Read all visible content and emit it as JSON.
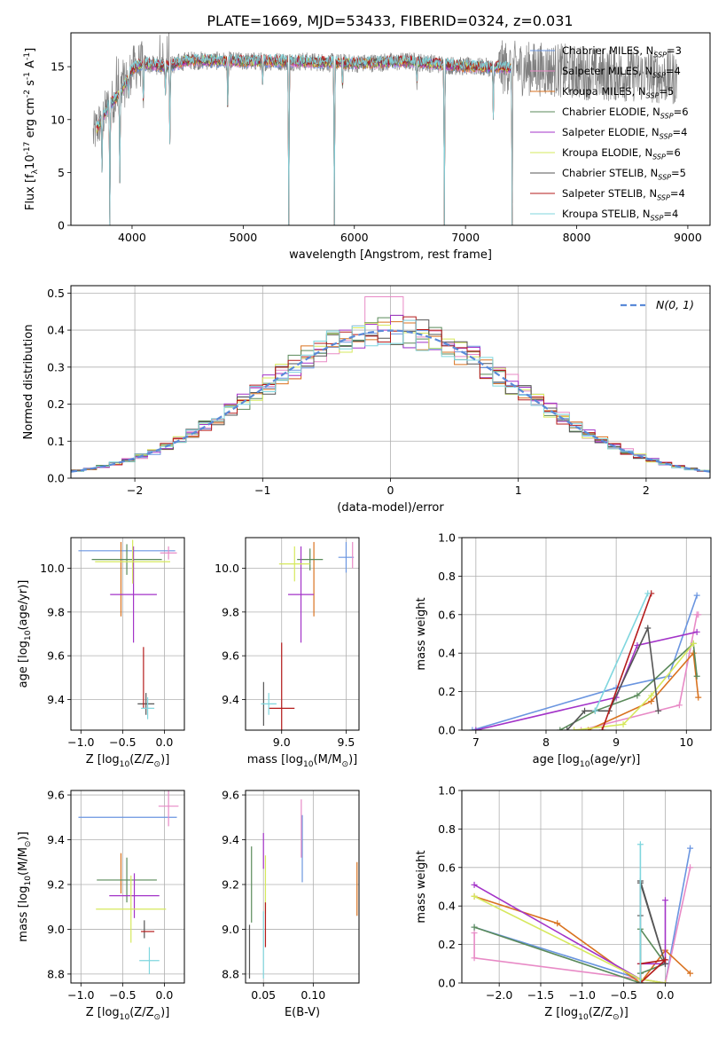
{
  "figure_title": "PLATE=1669, MJD=53433, FIBERID=0324, z=0.031",
  "series_colors": [
    "#6a95e0",
    "#e88ac6",
    "#d9721f",
    "#5a8a5a",
    "#a333c8",
    "#d6e85c",
    "#555555",
    "#b51b1b",
    "#7fd6de"
  ],
  "chart_data": [
    {
      "id": "spectrum",
      "type": "line",
      "title": "PLATE=1669, MJD=53433, FIBERID=0324, z=0.031",
      "xlabel": "wavelength [Angstrom, rest frame]",
      "ylabel": "Flux [f$_{\\lambda}$10$^{-17}$ erg cm$^{-2}$ s$^{-1}$ A$^{-1}$]",
      "xlim": [
        3450,
        9200
      ],
      "ylim": [
        0,
        18.2
      ],
      "xticks": [
        4000,
        5000,
        6000,
        7000,
        8000,
        9000
      ],
      "yticks": [
        0,
        5,
        10,
        15
      ],
      "legend_position": "top-right",
      "legend": [
        "Chabrier MILES, N$_{SSP}$=3",
        "Salpeter MILES, N$_{SSP}$=4",
        "Kroupa MILES, N$_{SSP}$=5",
        "Chabrier ELODIE, N$_{SSP}$=6",
        "Salpeter ELODIE, N$_{SSP}$=4",
        "Kroupa ELODIE, N$_{SSP}$=6",
        "Chabrier STELIB, N$_{SSP}$=5",
        "Salpeter STELIB, N$_{SSP}$=4",
        "Kroupa STELIB, N$_{SSP}$=4"
      ],
      "data_color": "#808080",
      "continuum": {
        "x": [
          3650,
          3800,
          3900,
          4000,
          4100,
          4300,
          4500,
          5000,
          5500,
          6000,
          6500,
          7000,
          7400,
          7800,
          8200,
          8600,
          8900
        ],
        "y": [
          8.5,
          11.5,
          12.5,
          14.8,
          15.3,
          15.0,
          15.6,
          15.5,
          15.5,
          15.3,
          15.5,
          15.0,
          14.9,
          14.7,
          14.3,
          14.2,
          13.9
        ]
      },
      "model_xlim": [
        3680,
        7420
      ],
      "dips": [
        {
          "x": 3730,
          "to": 5.0
        },
        {
          "x": 3800,
          "to": 0.0
        },
        {
          "x": 3890,
          "to": 4.0
        },
        {
          "x": 3970,
          "to": 12.0
        },
        {
          "x": 4102,
          "to": 10.5
        },
        {
          "x": 4300,
          "to": 12.3
        },
        {
          "x": 4340,
          "to": 7.7
        },
        {
          "x": 4861,
          "to": 10.5
        },
        {
          "x": 5175,
          "to": 13.3
        },
        {
          "x": 5410,
          "to": 0.0
        },
        {
          "x": 5820,
          "to": 0.0
        },
        {
          "x": 5893,
          "to": 12.5
        },
        {
          "x": 6563,
          "to": 12.8
        },
        {
          "x": 6810,
          "to": 0.0
        },
        {
          "x": 7250,
          "to": 10.0
        },
        {
          "x": 7420,
          "to": 0.0
        }
      ]
    },
    {
      "id": "residuals",
      "type": "area",
      "xlabel": "(data-model)/error",
      "ylabel": "Normed distribution",
      "xlim": [
        -2.5,
        2.5
      ],
      "ylim": [
        0,
        0.52
      ],
      "xticks": [
        -2,
        -1,
        0,
        1,
        2
      ],
      "yticks": [
        0.0,
        0.1,
        0.2,
        0.3,
        0.4,
        0.5
      ],
      "legend_position": "top-right",
      "reference_label": "$\\mathcal{N}(0, 1)$",
      "reference_color": "#5a8ad8",
      "bin_width": 0.1
    },
    {
      "id": "age-vs-Z",
      "type": "scatter",
      "xlabel": "Z [log$_{10}$(Z/Z$_\\odot$)]",
      "ylabel": "age  [log$_{10}$(age/yr)]",
      "xlim": [
        -1.12,
        0.24
      ],
      "ylim": [
        9.26,
        10.14
      ],
      "xticks": [
        -1.0,
        -0.5,
        0.0
      ],
      "yticks": [
        9.4,
        9.6,
        9.8,
        10.0
      ],
      "points": [
        {
          "x": -0.45,
          "y": 10.08,
          "xerr": 0.58,
          "yerr": 0.0
        },
        {
          "x": 0.05,
          "y": 10.07,
          "xerr": 0.1,
          "yerr": 0.03
        },
        {
          "x": -0.52,
          "y": 9.95,
          "xerr": 0.0,
          "yerr": 0.17
        },
        {
          "x": -0.45,
          "y": 10.04,
          "xerr": 0.42,
          "yerr": 0.07
        },
        {
          "x": -0.37,
          "y": 9.88,
          "xerr": 0.28,
          "yerr": 0.22
        },
        {
          "x": -0.38,
          "y": 10.03,
          "xerr": 0.45,
          "yerr": 0.1
        },
        {
          "x": -0.22,
          "y": 9.38,
          "xerr": 0.1,
          "yerr": 0.05
        },
        {
          "x": -0.25,
          "y": 9.5,
          "xerr": 0.0,
          "yerr": 0.14
        },
        {
          "x": -0.2,
          "y": 9.36,
          "xerr": 0.08,
          "yerr": 0.05
        }
      ]
    },
    {
      "id": "age-vs-mass",
      "type": "scatter",
      "xlabel": "mass [log$_{10}$(M/M$_\\odot$)]",
      "ylabel": "",
      "xlim": [
        8.72,
        9.6
      ],
      "ylim": [
        9.26,
        10.14
      ],
      "xticks": [
        9.0,
        9.5
      ],
      "yticks": [
        9.4,
        9.6,
        9.8,
        10.0
      ],
      "points": [
        {
          "x": 9.5,
          "y": 10.05,
          "xerr": 0.06,
          "yerr": 0.07
        },
        {
          "x": 9.55,
          "y": 10.06,
          "xerr": 0.0,
          "yerr": 0.06
        },
        {
          "x": 9.25,
          "y": 9.95,
          "xerr": 0.0,
          "yerr": 0.17
        },
        {
          "x": 9.22,
          "y": 10.04,
          "xerr": 0.1,
          "yerr": 0.05
        },
        {
          "x": 9.15,
          "y": 9.88,
          "xerr": 0.1,
          "yerr": 0.22
        },
        {
          "x": 9.1,
          "y": 10.02,
          "xerr": 0.12,
          "yerr": 0.08
        },
        {
          "x": 8.86,
          "y": 9.38,
          "xerr": 0.0,
          "yerr": 0.1
        },
        {
          "x": 9.0,
          "y": 9.36,
          "xerr": 0.1,
          "yerr": 0.3
        },
        {
          "x": 8.9,
          "y": 9.38,
          "xerr": 0.06,
          "yerr": 0.05
        }
      ]
    },
    {
      "id": "mass-weight-vs-age",
      "type": "line",
      "xlabel": "age  [log$_{10}$(age/yr)]",
      "ylabel": "mass weight",
      "xlim": [
        6.8,
        10.35
      ],
      "ylim": [
        0,
        1.0
      ],
      "xticks": [
        7,
        8,
        9,
        10
      ],
      "yticks": [
        0.0,
        0.2,
        0.4,
        0.6,
        0.8,
        1.0
      ],
      "series": [
        {
          "x": [
            6.95,
            9.0,
            9.75,
            10.15
          ],
          "y": [
            0.0,
            0.22,
            0.28,
            0.7
          ]
        },
        {
          "x": [
            8.5,
            9.9,
            10.15,
            10.17
          ],
          "y": [
            0.0,
            0.13,
            0.6,
            0.6
          ]
        },
        {
          "x": [
            8.6,
            9.5,
            10.1,
            10.17
          ],
          "y": [
            0.0,
            0.15,
            0.4,
            0.17
          ]
        },
        {
          "x": [
            8.2,
            8.7,
            9.3,
            10.1,
            10.15
          ],
          "y": [
            0.0,
            0.1,
            0.18,
            0.45,
            0.28
          ]
        },
        {
          "x": [
            7.0,
            9.0,
            9.3,
            10.15
          ],
          "y": [
            0.0,
            0.17,
            0.44,
            0.51
          ]
        },
        {
          "x": [
            8.4,
            9.1,
            9.5,
            10.1
          ],
          "y": [
            0.0,
            0.03,
            0.18,
            0.45
          ]
        },
        {
          "x": [
            8.3,
            8.55,
            8.9,
            9.45,
            9.6
          ],
          "y": [
            0.0,
            0.1,
            0.1,
            0.53,
            0.1
          ]
        },
        {
          "x": [
            8.8,
            9.5
          ],
          "y": [
            0.0,
            0.71
          ]
        },
        {
          "x": [
            8.7,
            9.45
          ],
          "y": [
            0.1,
            0.71
          ]
        }
      ]
    },
    {
      "id": "mass-vs-Z",
      "type": "scatter",
      "xlabel": "Z [log$_{10}$(Z/Z$_\\odot$)]",
      "ylabel": "mass [log$_{10}$(M/M$_\\odot$)]",
      "xlim": [
        -1.12,
        0.24
      ],
      "ylim": [
        8.76,
        9.62
      ],
      "xticks": [
        -1.0,
        -0.5,
        0.0
      ],
      "yticks": [
        8.8,
        9.0,
        9.2,
        9.4,
        9.6
      ],
      "points": [
        {
          "x": -0.44,
          "y": 9.5,
          "xerr": 0.59,
          "yerr": 0.0
        },
        {
          "x": 0.05,
          "y": 9.55,
          "xerr": 0.12,
          "yerr": 0.09
        },
        {
          "x": -0.52,
          "y": 9.25,
          "xerr": 0.0,
          "yerr": 0.09
        },
        {
          "x": -0.45,
          "y": 9.22,
          "xerr": 0.36,
          "yerr": 0.1
        },
        {
          "x": -0.36,
          "y": 9.15,
          "xerr": 0.3,
          "yerr": 0.1
        },
        {
          "x": -0.4,
          "y": 9.09,
          "xerr": 0.42,
          "yerr": 0.15
        },
        {
          "x": -0.24,
          "y": 9.0,
          "xerr": 0.0,
          "yerr": 0.04
        },
        {
          "x": -0.2,
          "y": 8.99,
          "xerr": 0.08,
          "yerr": 0.0
        },
        {
          "x": -0.18,
          "y": 8.86,
          "xerr": 0.12,
          "yerr": 0.06
        }
      ]
    },
    {
      "id": "mass-vs-ebv",
      "type": "scatter",
      "xlabel": "E(B-V)",
      "ylabel": "",
      "xlim": [
        0.032,
        0.146
      ],
      "ylim": [
        8.76,
        9.62
      ],
      "xticks": [
        0.05,
        0.1
      ],
      "yticks": [
        8.8,
        9.0,
        9.2,
        9.4,
        9.6
      ],
      "points": [
        {
          "x": 0.089,
          "y": 9.36,
          "xerr": 0.0,
          "yerr": 0.15
        },
        {
          "x": 0.088,
          "y": 9.45,
          "xerr": 0.0,
          "yerr": 0.13
        },
        {
          "x": 0.144,
          "y": 9.18,
          "xerr": 0.0,
          "yerr": 0.12
        },
        {
          "x": 0.038,
          "y": 9.2,
          "xerr": 0.0,
          "yerr": 0.17
        },
        {
          "x": 0.05,
          "y": 9.35,
          "xerr": 0.0,
          "yerr": 0.08
        },
        {
          "x": 0.052,
          "y": 9.2,
          "xerr": 0.0,
          "yerr": 0.13
        },
        {
          "x": 0.036,
          "y": 8.9,
          "xerr": 0.0,
          "yerr": 0.12
        },
        {
          "x": 0.052,
          "y": 9.02,
          "xerr": 0.0,
          "yerr": 0.1
        },
        {
          "x": 0.05,
          "y": 8.93,
          "xerr": 0.0,
          "yerr": 0.15
        }
      ]
    },
    {
      "id": "mass-weight-vs-Z",
      "type": "line",
      "xlabel": "Z [log$_{10}$(Z/Z$_\\odot$)]",
      "ylabel": "mass weight",
      "xlim": [
        -2.45,
        0.55
      ],
      "ylim": [
        0,
        1.0
      ],
      "xticks": [
        -2.0,
        -1.5,
        -1.0,
        -0.5,
        0.0
      ],
      "yticks": [
        0.0,
        0.2,
        0.4,
        0.6,
        0.8,
        1.0
      ],
      "series": [
        {
          "x": [
            -2.3,
            -0.3,
            0.0,
            0.3
          ],
          "y": [
            0.29,
            0.02,
            0.0,
            0.7
          ]
        },
        {
          "x": [
            -2.3,
            -2.3,
            -0.3,
            0.0,
            0.3
          ],
          "y": [
            0.26,
            0.13,
            0.02,
            0.0,
            0.6
          ]
        },
        {
          "x": [
            -2.3,
            -1.3,
            -0.3,
            0.0,
            0.3
          ],
          "y": [
            0.45,
            0.31,
            0.0,
            0.17,
            0.05
          ]
        },
        {
          "x": [
            -2.3,
            -0.3,
            -0.3,
            0.0,
            -0.3
          ],
          "y": [
            0.29,
            0.0,
            0.28,
            0.1,
            0.05
          ]
        },
        {
          "x": [
            -2.3,
            -0.3,
            -0.3,
            0.0,
            0.0
          ],
          "y": [
            0.51,
            0.02,
            0.1,
            0.1,
            0.43
          ]
        },
        {
          "x": [
            -2.3,
            -0.3,
            0.0,
            -0.3
          ],
          "y": [
            0.45,
            0.02,
            0.0,
            0.0
          ]
        },
        {
          "x": [
            -0.3,
            -0.3,
            -0.3,
            0.0,
            -0.3
          ],
          "y": [
            0.0,
            0.35,
            0.52,
            0.1,
            0.53
          ]
        },
        {
          "x": [
            -0.3,
            -0.3,
            0.0,
            -0.3
          ],
          "y": [
            0.0,
            0.1,
            0.12,
            0.0
          ]
        },
        {
          "x": [
            -0.3,
            -0.3
          ],
          "y": [
            0.0,
            0.72
          ]
        }
      ]
    }
  ]
}
